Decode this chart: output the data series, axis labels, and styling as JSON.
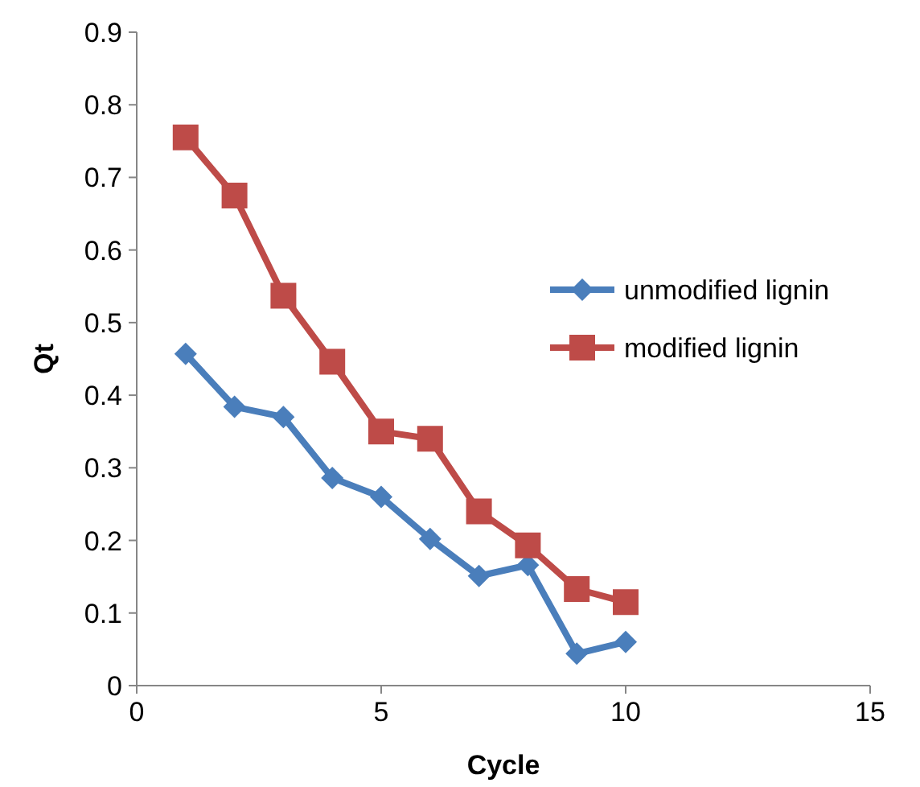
{
  "chart_data": {
    "type": "line",
    "xlabel": "Cycle",
    "ylabel": "Qt",
    "x": [
      1,
      2,
      3,
      4,
      5,
      6,
      7,
      8,
      9,
      10
    ],
    "series": [
      {
        "name": "unmodified lignin",
        "color": "#4a7ebb",
        "marker": "diamond",
        "values": [
          0.457,
          0.384,
          0.37,
          0.286,
          0.26,
          0.202,
          0.151,
          0.166,
          0.044,
          0.06
        ]
      },
      {
        "name": "modified lignin",
        "color": "#be4b48",
        "marker": "square",
        "values": [
          0.755,
          0.675,
          0.537,
          0.446,
          0.35,
          0.34,
          0.24,
          0.193,
          0.133,
          0.115
        ]
      }
    ],
    "xlim": [
      0,
      15
    ],
    "xticks": [
      0,
      5,
      10,
      15
    ],
    "ylim": [
      0,
      0.9
    ],
    "yticks": [
      0,
      0.1,
      0.2,
      0.3,
      0.4,
      0.5,
      0.6,
      0.7,
      0.8,
      0.9
    ],
    "grid": false,
    "legend": "right",
    "line_style": "solid"
  }
}
